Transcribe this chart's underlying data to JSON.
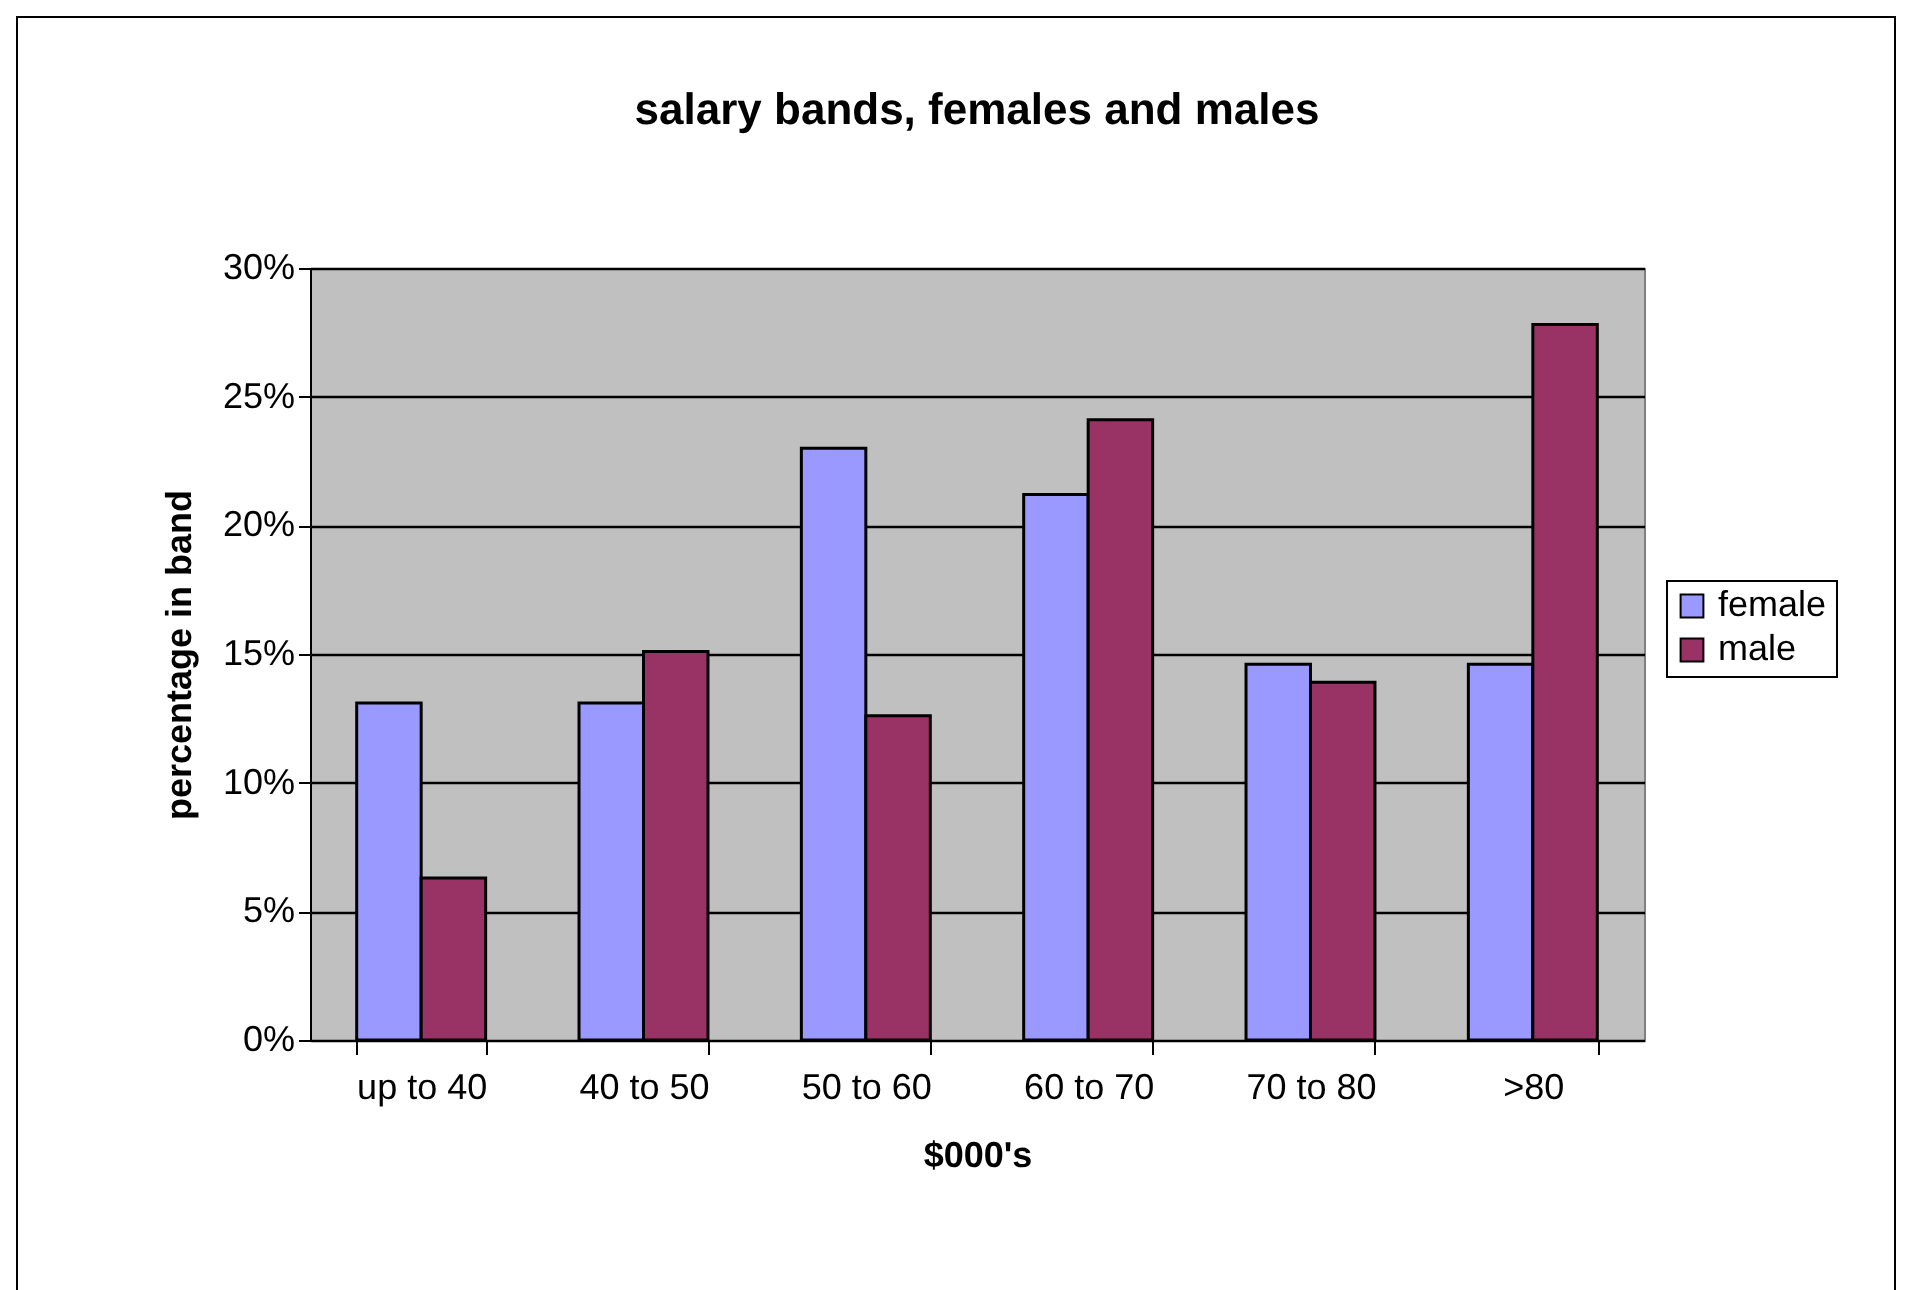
{
  "chart_data": {
    "type": "bar",
    "title": "salary bands, females and males",
    "xlabel": "$000's",
    "ylabel": "percentage in band",
    "categories": [
      "up to 40",
      "40 to 50",
      "50 to 60",
      "60 to 70",
      "70 to 80",
      ">80"
    ],
    "series": [
      {
        "name": "female",
        "color": "#9999ff",
        "values": [
          13.1,
          13.1,
          23.0,
          21.2,
          14.6,
          14.6
        ]
      },
      {
        "name": "male",
        "color": "#993366",
        "values": [
          6.3,
          15.1,
          12.6,
          24.1,
          13.9,
          27.8
        ]
      }
    ],
    "ylim": [
      0,
      30
    ],
    "yticks": [
      {
        "value": 0,
        "label": "0%"
      },
      {
        "value": 5,
        "label": "5%"
      },
      {
        "value": 10,
        "label": "10%"
      },
      {
        "value": 15,
        "label": "15%"
      },
      {
        "value": 20,
        "label": "20%"
      },
      {
        "value": 25,
        "label": "25%"
      },
      {
        "value": 30,
        "label": "30%"
      }
    ],
    "grid": "y",
    "legend": "right"
  }
}
